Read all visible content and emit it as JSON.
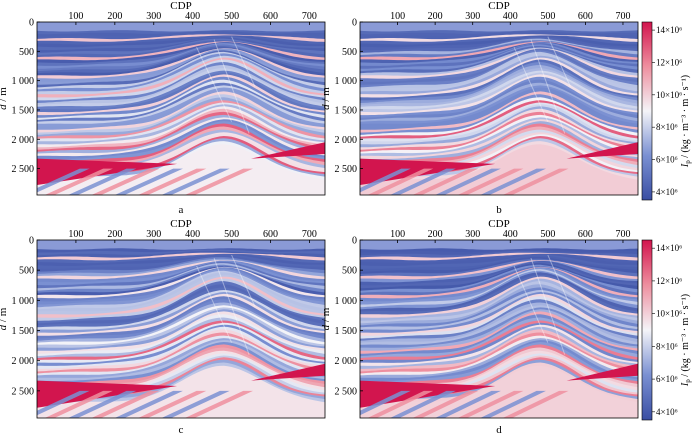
{
  "figure": {
    "panel_letters": [
      "a",
      "b",
      "c",
      "d"
    ],
    "x_axis_title": "CDP",
    "y_axis_title_var": "d",
    "y_axis_title_unit": " / m",
    "colorbar_title_var": "I",
    "colorbar_title_sub": "p",
    "colorbar_title_unit": " / (kg · m⁻³ · m · s⁻¹)",
    "x_ticks": [
      "100",
      "200",
      "300",
      "400",
      "500",
      "600",
      "700"
    ],
    "y_ticks": [
      "0",
      "500",
      "1 000",
      "1 500",
      "2 000",
      "2 500"
    ],
    "colorbar_ticks": [
      "4×10⁶",
      "6×10⁶",
      "8×10⁶",
      "10×10⁶",
      "12×10⁶",
      "14×10⁶"
    ]
  },
  "chart_data": [
    {
      "type": "heatmap",
      "panel": "a",
      "xlabel": "CDP",
      "ylabel": "d / m",
      "xlim": [
        0,
        740
      ],
      "ylim": [
        0,
        2950
      ],
      "y_inverted": true,
      "x_ticks": [
        100,
        200,
        300,
        400,
        500,
        600,
        700
      ],
      "y_ticks": [
        0,
        500,
        1000,
        1500,
        2000,
        2500
      ],
      "colorbar_label": "Ip / (kg · m⁻³ · m · s⁻¹)",
      "colorbar_range": [
        3500000,
        14500000
      ],
      "colorbar_ticks": [
        4000000,
        6000000,
        8000000,
        10000000,
        12000000,
        14000000
      ],
      "colormap": [
        "#3a4ea3",
        "#7a90d2",
        "#f4f4f8",
        "#ee8f9f",
        "#d2154e"
      ]
    },
    {
      "type": "heatmap",
      "panel": "b",
      "xlabel": "CDP",
      "ylabel": "d / m",
      "xlim": [
        0,
        740
      ],
      "ylim": [
        0,
        2950
      ],
      "y_inverted": true,
      "colorbar_label": "Ip / (kg · m⁻³ · m · s⁻¹)",
      "colorbar_range": [
        3500000,
        14500000
      ]
    },
    {
      "type": "heatmap",
      "panel": "c",
      "xlabel": "CDP",
      "ylabel": "d / m",
      "xlim": [
        0,
        740
      ],
      "ylim": [
        0,
        2950
      ],
      "y_inverted": true,
      "colorbar_label": "Ip / (kg · m⁻³ · m · s⁻¹)",
      "colorbar_range": [
        3500000,
        14500000
      ]
    },
    {
      "type": "heatmap",
      "panel": "d",
      "xlabel": "CDP",
      "ylabel": "d / m",
      "xlim": [
        0,
        740
      ],
      "ylim": [
        0,
        2950
      ],
      "y_inverted": true,
      "colorbar_label": "Ip / (kg · m⁻³ · m · s⁻¹)",
      "colorbar_range": [
        3500000,
        14500000
      ]
    }
  ]
}
